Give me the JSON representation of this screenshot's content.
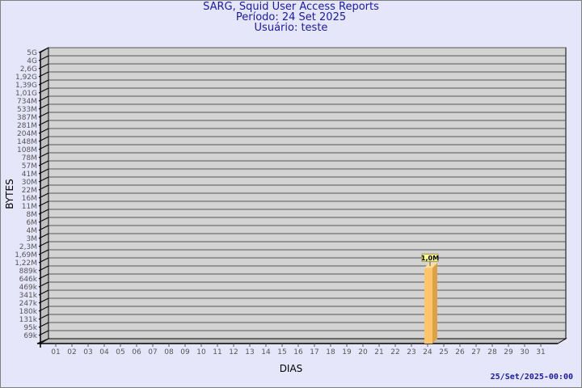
{
  "chart_data": {
    "type": "bar",
    "title": "SARG, Squid User Access Reports",
    "subtitle_lines": [
      "Período: 24 Set 2025",
      "Usuário: teste"
    ],
    "xlabel": "DIAS",
    "ylabel": "BYTES",
    "y_scale": "log",
    "grid": true,
    "categories": [
      "01",
      "02",
      "03",
      "04",
      "05",
      "06",
      "07",
      "08",
      "09",
      "10",
      "11",
      "12",
      "13",
      "14",
      "15",
      "16",
      "17",
      "18",
      "19",
      "20",
      "21",
      "22",
      "23",
      "24",
      "25",
      "26",
      "27",
      "28",
      "29",
      "30",
      "31"
    ],
    "y_ticks": [
      {
        "label": "69k",
        "value": 69000
      },
      {
        "label": "95k",
        "value": 95000
      },
      {
        "label": "131k",
        "value": 131000
      },
      {
        "label": "180k",
        "value": 180000
      },
      {
        "label": "247k",
        "value": 247000
      },
      {
        "label": "341k",
        "value": 341000
      },
      {
        "label": "469k",
        "value": 469000
      },
      {
        "label": "646k",
        "value": 646000
      },
      {
        "label": "889k",
        "value": 889000
      },
      {
        "label": "1,22M",
        "value": 1220000
      },
      {
        "label": "1,69M",
        "value": 1690000
      },
      {
        "label": "2,3M",
        "value": 2300000
      },
      {
        "label": "3M",
        "value": 3000000
      },
      {
        "label": "4M",
        "value": 4000000
      },
      {
        "label": "6M",
        "value": 6000000
      },
      {
        "label": "8M",
        "value": 8000000
      },
      {
        "label": "11M",
        "value": 11000000
      },
      {
        "label": "16M",
        "value": 16000000
      },
      {
        "label": "22M",
        "value": 22000000
      },
      {
        "label": "30M",
        "value": 30000000
      },
      {
        "label": "41M",
        "value": 41000000
      },
      {
        "label": "57M",
        "value": 57000000
      },
      {
        "label": "78M",
        "value": 78000000
      },
      {
        "label": "108M",
        "value": 108000000
      },
      {
        "label": "148M",
        "value": 148000000
      },
      {
        "label": "204M",
        "value": 204000000
      },
      {
        "label": "281M",
        "value": 281000000
      },
      {
        "label": "387M",
        "value": 387000000
      },
      {
        "label": "533M",
        "value": 533000000
      },
      {
        "label": "734M",
        "value": 734000000
      },
      {
        "label": "1,01G",
        "value": 1010000000
      },
      {
        "label": "1,39G",
        "value": 1390000000
      },
      {
        "label": "1,92G",
        "value": 1920000000
      },
      {
        "label": "2,6G",
        "value": 2600000000
      },
      {
        "label": "4G",
        "value": 4000000000
      },
      {
        "label": "5G",
        "value": 5000000000
      }
    ],
    "series": [
      {
        "points": [
          {
            "category": "24",
            "value": 1000000,
            "label": "1,0M"
          }
        ]
      }
    ],
    "colors": {
      "background": "#e6e6fa",
      "wall": "#d3d3d3",
      "side_wall": "#c0c0c0",
      "bar_front": "#ffc56a",
      "bar_side": "#dba24a",
      "bar_top": "#ffe09a",
      "title": "#1a1a9a",
      "label_bg": "#ffff99"
    }
  },
  "footer": {
    "timestamp": "25/Set/2025-00:00"
  }
}
